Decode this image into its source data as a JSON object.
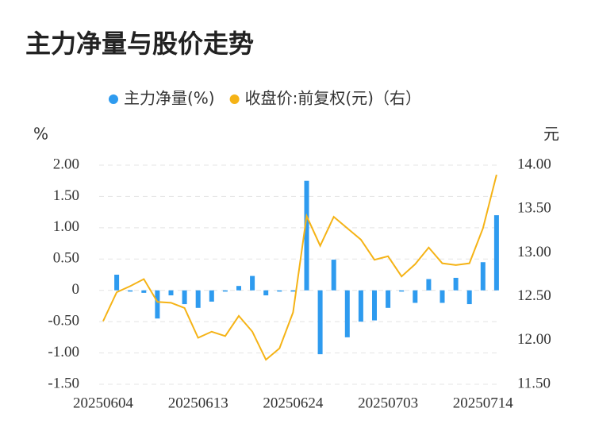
{
  "chart_data": {
    "type": "bar-line",
    "title": "主力净量与股价走势",
    "y_label": "%",
    "y2_label": "元",
    "categories": [
      "20250604",
      null,
      null,
      null,
      null,
      null,
      null,
      "20250613",
      null,
      null,
      null,
      null,
      null,
      null,
      "20250624",
      null,
      null,
      null,
      null,
      null,
      null,
      "20250703",
      null,
      null,
      null,
      null,
      null,
      null,
      "20250714",
      null
    ],
    "series": [
      {
        "name": "主力净量(%)",
        "type": "bar",
        "color": "#2e9bef",
        "axis": "y",
        "values": [
          0,
          0.25,
          -0.02,
          -0.04,
          -0.45,
          -0.08,
          -0.22,
          -0.28,
          -0.18,
          -0.02,
          0.07,
          0.23,
          -0.08,
          -0.02,
          -0.02,
          1.75,
          -1.02,
          0.49,
          -0.75,
          -0.5,
          -0.48,
          -0.28,
          -0.02,
          -0.2,
          0.18,
          -0.2,
          0.2,
          -0.22,
          0.45,
          1.2
        ]
      },
      {
        "name": "收盘价:前复权(元)（右）",
        "type": "line",
        "color": "#f5b316",
        "axis": "y2",
        "values": [
          12.22,
          12.55,
          12.62,
          12.7,
          12.44,
          12.43,
          12.37,
          12.03,
          12.1,
          12.05,
          12.28,
          12.1,
          11.78,
          11.91,
          12.32,
          13.42,
          13.08,
          13.41,
          13.28,
          13.15,
          12.92,
          12.96,
          12.73,
          12.87,
          13.06,
          12.88,
          12.86,
          12.88,
          13.28,
          13.89
        ]
      }
    ],
    "ylim": [
      -1.5,
      2
    ],
    "yticks": [
      {
        "value": 2,
        "label": "2.00"
      },
      {
        "value": 1.5,
        "label": "1.50"
      },
      {
        "value": 1,
        "label": "1.00"
      },
      {
        "value": 0.5,
        "label": "0.50"
      },
      0,
      {
        "value": -0.5,
        "label": "-0.50"
      },
      {
        "value": -1,
        "label": "-1.00"
      },
      {
        "value": -1.5,
        "label": "-1.50"
      }
    ],
    "y2lim": [
      11.5,
      14
    ],
    "y2ticks": [
      {
        "value": 14,
        "label": "14.00"
      },
      {
        "value": 13.5,
        "label": "13.50"
      },
      {
        "value": 13,
        "label": "13.00"
      },
      {
        "value": 12.5,
        "label": "12.50"
      },
      {
        "value": 12,
        "label": "12.00"
      },
      {
        "value": 11.5,
        "label": "11.50"
      }
    ],
    "grid": true,
    "legend": "top"
  }
}
